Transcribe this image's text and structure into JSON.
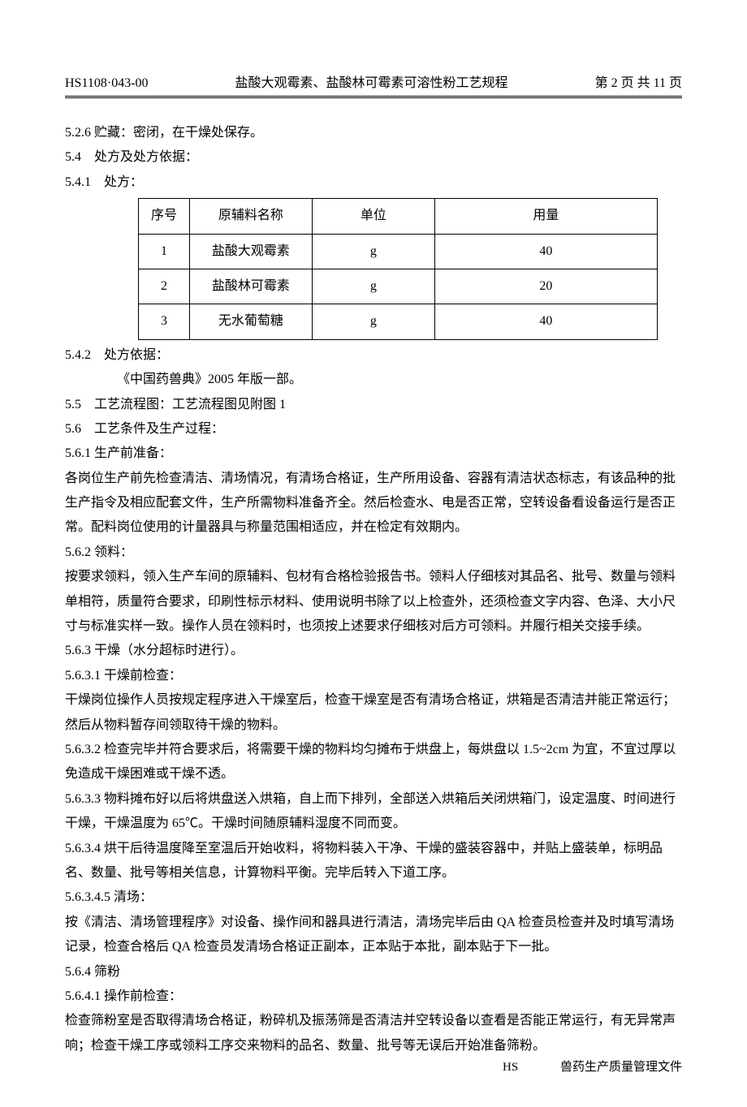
{
  "header": {
    "doc_code": "HS1108·043-00",
    "doc_title": "盐酸大观霉素、盐酸林可霉素可溶性粉工艺规程",
    "page_info": "第 2 页 共 11 页"
  },
  "sections": {
    "s526": "5.2.6 贮藏：密闭，在干燥处保存。",
    "s54": "5.4　处方及处方依据：",
    "s541": "5.4.1　处方：",
    "s542": "5.4.2　处方依据：",
    "s542_body": "《中国药兽典》2005 年版一部。",
    "s55": "5.5　工艺流程图：工艺流程图见附图 1",
    "s56": "5.6　工艺条件及生产过程：",
    "s561": "5.6.1 生产前准备：",
    "s561_body": "各岗位生产前先检查清洁、清场情况，有清场合格证，生产所用设备、容器有清洁状态标志，有该品种的批生产指令及相应配套文件，生产所需物料准备齐全。然后检查水、电是否正常，空转设备看设备运行是否正常。配料岗位使用的计量器具与称量范围相适应，并在检定有效期内。",
    "s562": "5.6.2 领料：",
    "s562_body": "按要求领料，领入生产车间的原辅料、包材有合格检验报告书。领料人仔细核对其品名、批号、数量与领料单相符，质量符合要求，印刷性标示材料、使用说明书除了以上检查外，还须检查文字内容、色泽、大小尺寸与标准实样一致。操作人员在领料时，也须按上述要求仔细核对后方可领料。并履行相关交接手续。",
    "s563": "5.6.3 干燥（水分超标时进行）。",
    "s5631": "5.6.3.1 干燥前检查：",
    "s5631_body": "干燥岗位操作人员按规定程序进入干燥室后，检查干燥室是否有清场合格证，烘箱是否清洁并能正常运行；然后从物料暂存间领取待干燥的物料。",
    "s5632": "5.6.3.2 检查完毕并符合要求后，将需要干燥的物料均匀摊布于烘盘上，每烘盘以 1.5~2cm 为宜，不宜过厚以免造成干燥困难或干燥不透。",
    "s5633": "5.6.3.3 物料摊布好以后将烘盘送入烘箱，自上而下排列，全部送入烘箱后关闭烘箱门，设定温度、时间进行干燥，干燥温度为 65℃。干燥时间随原辅料湿度不同而变。",
    "s5634": "5.6.3.4 烘干后待温度降至室温后开始收料，将物料装入干净、干燥的盛装容器中，并贴上盛装单，标明品名、数量、批号等相关信息，计算物料平衡。完毕后转入下道工序。",
    "s56345": "5.6.3.4.5 清场：",
    "s56345_body": "按《清洁、清场管理程序》对设备、操作间和器具进行清洁，清场完毕后由 QA 检查员检查并及时填写清场记录，检查合格后 QA 检查员发清场合格证正副本，正本贴于本批，副本贴于下一批。",
    "s564": "5.6.4 筛粉",
    "s5641": "5.6.4.1 操作前检查：",
    "s5641_body": "检查筛粉室是否取得清场合格证，粉碎机及振荡筛是否清洁并空转设备以查看是否能正常运行，有无异常声响；检查干燥工序或领料工序交来物料的品名、数量、批号等无误后开始准备筛粉。"
  },
  "table": {
    "headers": [
      "序号",
      "原辅料名称",
      "单位",
      "用量"
    ],
    "rows": [
      [
        "1",
        "盐酸大观霉素",
        "g",
        "40"
      ],
      [
        "2",
        "盐酸林可霉素",
        "g",
        "20"
      ],
      [
        "3",
        "无水葡萄糖",
        "g",
        "40"
      ]
    ]
  },
  "footer": {
    "left": "HS",
    "right": "兽药生产质量管理文件"
  }
}
